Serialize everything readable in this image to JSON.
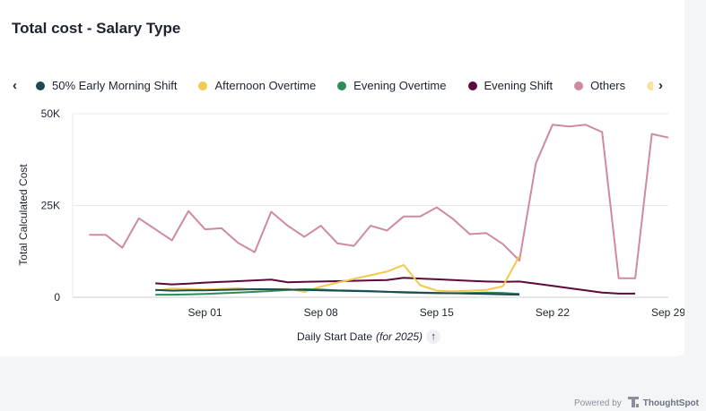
{
  "title": "Total cost - Salary Type",
  "legend": {
    "prev": "‹",
    "next": "›",
    "items": [
      {
        "label": "50% Early Morning Shift",
        "color": "#1d4a55"
      },
      {
        "label": "Afternoon Overtime",
        "color": "#f2c94c"
      },
      {
        "label": "Evening Overtime",
        "color": "#2e8b57"
      },
      {
        "label": "Evening Shift",
        "color": "#5c0a3a"
      },
      {
        "label": "Others",
        "color": "#cf8aa0"
      },
      {
        "label": "",
        "color": "#f8e3a3"
      }
    ]
  },
  "xaxis": {
    "title": "Daily Start Date",
    "subtitle": "(for 2025)",
    "sort_icon": "↑"
  },
  "footer": {
    "powered": "Powered by",
    "brand": "ThoughtSpot"
  },
  "chart_data": {
    "type": "line",
    "title": "Total cost - Salary Type",
    "xlabel": "Daily Start Date (for 2025)",
    "ylabel": "Total Calculated Cost",
    "ylim": [
      0,
      50000
    ],
    "yticks": [
      {
        "value": 0,
        "label": "0"
      },
      {
        "value": 25000,
        "label": "25K"
      },
      {
        "value": 50000,
        "label": "50K"
      }
    ],
    "x_start_day": 26,
    "x_end_day": 58,
    "xticks": [
      {
        "day": 32,
        "label": "Sep 01"
      },
      {
        "day": 39,
        "label": "Sep 08"
      },
      {
        "day": 46,
        "label": "Sep 15"
      },
      {
        "day": 53,
        "label": "Sep 22"
      },
      {
        "day": 60,
        "label": "Sep 29"
      }
    ],
    "series": [
      {
        "name": "Others",
        "color": "#cf8aa0",
        "x": [
          25,
          26,
          27,
          28,
          29,
          30,
          31,
          32,
          33,
          34,
          35,
          36,
          37,
          38,
          39,
          40,
          41,
          42,
          43,
          44,
          45,
          46,
          47,
          48,
          49,
          50,
          51,
          52,
          53,
          54,
          55,
          56,
          57,
          58,
          59,
          60,
          61
        ],
        "values": [
          17000,
          17000,
          13500,
          21500,
          18500,
          15500,
          23500,
          18500,
          18800,
          14800,
          12300,
          23300,
          19500,
          16500,
          19500,
          14700,
          14000,
          19500,
          18200,
          22000,
          22000,
          24500,
          21300,
          17200,
          17500,
          14500,
          10000,
          36500,
          47000,
          46500,
          47000,
          45000,
          5200,
          5200,
          44500,
          43500,
          null
        ]
      },
      {
        "name": "Evening Shift",
        "color": "#5c0a3a",
        "x": [
          29,
          30,
          31,
          32,
          33,
          34,
          35,
          36,
          37,
          38,
          39,
          40,
          41,
          42,
          43,
          44,
          45,
          46,
          47,
          48,
          49,
          50,
          51,
          52,
          53,
          54,
          55,
          56,
          57,
          58
        ],
        "values": [
          3800,
          3500,
          3700,
          4000,
          4200,
          4400,
          4600,
          4800,
          4100,
          4200,
          4300,
          4400,
          4500,
          4600,
          4700,
          5300,
          5100,
          4900,
          4700,
          4500,
          4300,
          4200,
          4300,
          3700,
          3100,
          2500,
          1900,
          1300,
          1000,
          1000
        ]
      },
      {
        "name": "Afternoon Overtime",
        "color": "#f2c94c",
        "x": [
          29,
          30,
          31,
          32,
          33,
          34,
          35,
          36,
          37,
          38,
          39,
          40,
          41,
          42,
          43,
          44,
          45,
          46,
          47,
          48,
          49,
          50,
          51
        ],
        "values": [
          1800,
          2400,
          2300,
          2100,
          2300,
          2500,
          2100,
          2200,
          2300,
          1500,
          2900,
          4000,
          5000,
          6000,
          7000,
          8800,
          3300,
          1800,
          1600,
          1800,
          2000,
          3000,
          11300
        ]
      },
      {
        "name": "Evening Overtime",
        "color": "#2e8b57",
        "x": [
          29,
          30,
          31,
          32,
          33,
          34,
          35,
          36,
          37,
          38,
          39,
          40,
          41,
          42,
          43,
          44,
          45,
          46,
          47,
          48,
          49,
          50,
          51
        ],
        "values": [
          700,
          700,
          800,
          900,
          1100,
          1300,
          1500,
          1700,
          2000,
          2200,
          2100,
          1900,
          1800,
          1700,
          1500,
          1300,
          1200,
          1100,
          1100,
          1200,
          1300,
          1200,
          900
        ]
      },
      {
        "name": "50% Early Morning Shift",
        "color": "#1d4a55",
        "x": [
          29,
          30,
          31,
          32,
          33,
          34,
          35,
          36,
          37,
          38,
          39,
          40,
          41,
          42,
          43,
          44,
          45,
          46,
          47,
          48,
          49,
          50,
          51
        ],
        "values": [
          2000,
          1800,
          1900,
          1900,
          2000,
          2100,
          2200,
          2200,
          2100,
          2000,
          1900,
          1800,
          1700,
          1600,
          1500,
          1400,
          1300,
          1200,
          1100,
          1000,
          900,
          800,
          700
        ]
      }
    ]
  }
}
